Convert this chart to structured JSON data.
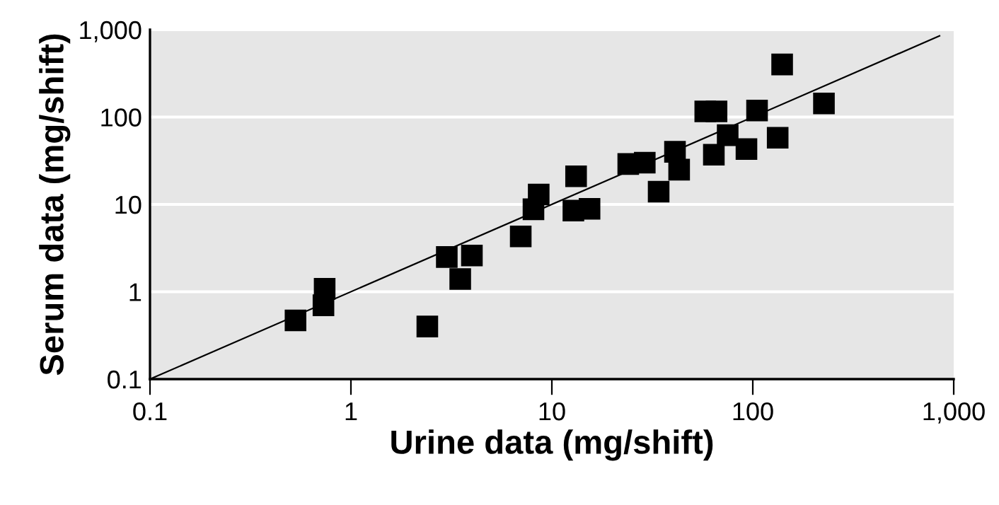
{
  "chart_data": {
    "type": "scatter",
    "xlabel": "Urine data (mg/shift)",
    "ylabel": "Serum data (mg/shift)",
    "log": "xy",
    "grid": "y",
    "marker": "square",
    "xlim": [
      0.1,
      1000
    ],
    "ylim": [
      0.1,
      1000
    ],
    "xticks": [
      0.1,
      1,
      10,
      100,
      {
        "value": 1000,
        "label": "1,000"
      }
    ],
    "yticks": [
      0.1,
      1,
      10,
      100,
      {
        "value": 1000,
        "label": "1,000"
      }
    ],
    "series": [
      {
        "color": "#000000",
        "x": [
          0.53,
          0.73,
          0.74,
          2.4,
          3.0,
          3.5,
          4.0,
          7.0,
          8.1,
          8.6,
          13.2,
          12.8,
          15.4,
          24,
          29,
          34,
          41,
          43,
          58,
          66,
          64,
          75,
          93,
          105,
          133,
          140,
          226
        ],
        "values": [
          0.47,
          0.7,
          1.08,
          0.4,
          2.5,
          1.4,
          2.6,
          4.3,
          8.8,
          13,
          21,
          8.5,
          8.9,
          29,
          30,
          14,
          40,
          25,
          116,
          116,
          37,
          62,
          43,
          119,
          58,
          400,
          143
        ]
      },
      {
        "type": "line",
        "color": "#000000",
        "marker": "none",
        "x": [
          0.1,
          850
        ],
        "values": [
          0.1,
          850
        ]
      }
    ]
  }
}
